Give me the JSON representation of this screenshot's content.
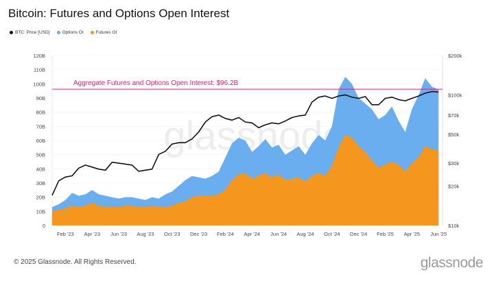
{
  "title": "Bitcoin: Futures and Options Open Interest",
  "footer": "© 2025 Glassnode. All Rights Reserved.",
  "brand": "glassnode",
  "watermark": "glassnode",
  "colors": {
    "price": "#111111",
    "options": "#6aaef0",
    "futures": "#f5961e",
    "annotation": "#e6197a"
  },
  "chart_data": {
    "type": "area",
    "title": "Bitcoin: Futures and Options Open Interest",
    "legend_position": "top-left",
    "grid": true,
    "series_meta": [
      {
        "key": "price",
        "name": "BTC: Price [USD]",
        "type": "line",
        "axis": "right"
      },
      {
        "key": "options",
        "name": "Options OI",
        "type": "area",
        "axis": "left"
      },
      {
        "key": "futures",
        "name": "Futures OI",
        "type": "area",
        "axis": "left"
      }
    ],
    "x_ticks": [
      "Feb '23",
      "Apr '23",
      "Jun '23",
      "Aug '23",
      "Oct '23",
      "Dec '23",
      "Feb '24",
      "Apr '24",
      "Jun '24",
      "Aug '24",
      "Oct '24",
      "Dec '24",
      "Feb '25",
      "Apr '25",
      "Jun '25"
    ],
    "left_axis": {
      "ticks": [
        "0",
        "10B",
        "20B",
        "30B",
        "40B",
        "50B",
        "60B",
        "70B",
        "80B",
        "90B",
        "100B",
        "110B",
        "120B"
      ],
      "range": [
        0,
        120
      ]
    },
    "right_axis": {
      "ticks": [
        "$10k",
        "$20k",
        "$30k",
        "$50k",
        "$70k",
        "$100k",
        "$200k"
      ],
      "values": [
        10,
        20,
        30,
        50,
        70,
        100,
        200
      ],
      "scale": "log"
    },
    "annotation": {
      "label": "Aggregate Futures and Options Open Interest:  $96.2B",
      "value": 96.2
    },
    "x_months": [
      0,
      0.5,
      1,
      1.5,
      2,
      2.5,
      3,
      3.5,
      4,
      4.5,
      5,
      5.5,
      6,
      6.5,
      7,
      7.5,
      8,
      8.5,
      9,
      9.5,
      10,
      10.5,
      11,
      11.5,
      12,
      12.5,
      13,
      13.5,
      14,
      14.5,
      15,
      15.5,
      16,
      16.5,
      17,
      17.5,
      18,
      18.5,
      19,
      19.5,
      20,
      20.5,
      21,
      21.5,
      22,
      22.5,
      23,
      23.5,
      24,
      24.5,
      25,
      25.5,
      26,
      26.5,
      27,
      27.5,
      28,
      28.5,
      29
    ],
    "futures_oi_b": [
      10,
      11,
      12,
      14,
      13,
      14,
      16,
      14,
      13,
      13,
      13,
      14,
      14,
      13,
      13,
      14,
      13,
      13,
      14,
      16,
      17,
      20,
      21,
      21,
      21,
      22,
      25,
      32,
      36,
      37,
      33,
      35,
      37,
      34,
      36,
      32,
      33,
      34,
      31,
      35,
      37,
      35,
      42,
      55,
      64,
      62,
      56,
      52,
      46,
      41,
      43,
      45,
      43,
      38,
      44,
      48,
      56,
      54,
      53
    ],
    "total_oi_b": [
      13,
      15,
      18,
      23,
      21,
      22,
      25,
      22,
      21,
      20,
      19,
      20,
      20,
      19,
      18,
      20,
      19,
      22,
      24,
      28,
      32,
      35,
      34,
      33,
      35,
      38,
      48,
      58,
      62,
      60,
      52,
      56,
      61,
      55,
      57,
      50,
      53,
      56,
      50,
      58,
      64,
      60,
      70,
      96,
      105,
      100,
      90,
      86,
      82,
      75,
      78,
      84,
      74,
      66,
      82,
      92,
      104,
      98,
      96
    ],
    "price_k": [
      17,
      22,
      23.5,
      24,
      27.5,
      29,
      28,
      27,
      26.5,
      30.5,
      30,
      29.5,
      29,
      26,
      26.5,
      27,
      35,
      37,
      42,
      43,
      43,
      46,
      52,
      62,
      68,
      70,
      66,
      64,
      67,
      62,
      61,
      56,
      59,
      61,
      60,
      63,
      67,
      69,
      70,
      88,
      96,
      98,
      94,
      98,
      100,
      96,
      94,
      97,
      84,
      84,
      94,
      96,
      92,
      90,
      94,
      98,
      103,
      106,
      105
    ]
  }
}
